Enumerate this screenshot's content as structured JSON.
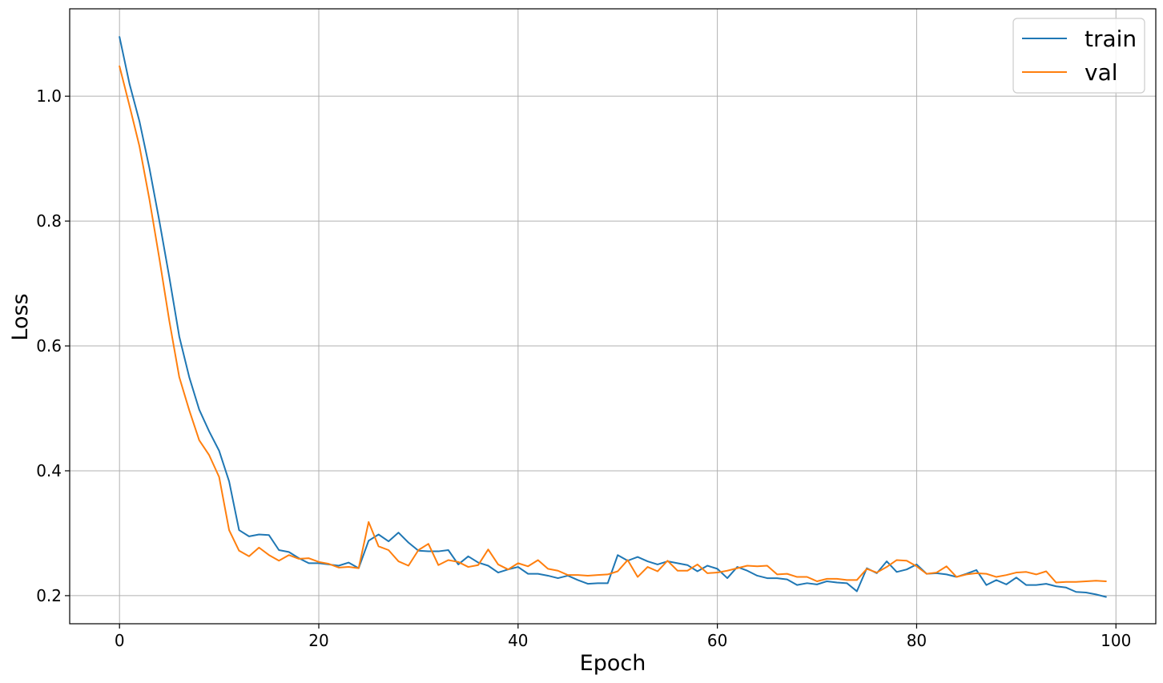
{
  "chart_data": {
    "type": "line",
    "title": "",
    "xlabel": "Epoch",
    "ylabel": "Loss",
    "xlim": [
      -5,
      104
    ],
    "ylim": [
      0.155,
      1.14
    ],
    "xticks": [
      0,
      20,
      40,
      60,
      80,
      100
    ],
    "xtick_labels": [
      "0",
      "20",
      "40",
      "60",
      "80",
      "100"
    ],
    "yticks": [
      0.2,
      0.4,
      0.6,
      0.8,
      1.0
    ],
    "ytick_labels": [
      "0.2",
      "0.4",
      "0.6",
      "0.8",
      "1.0"
    ],
    "grid": true,
    "legend_position": "top-right",
    "series": [
      {
        "name": "train",
        "color": "#1f77b4",
        "values": [
          1.095,
          1.02,
          0.96,
          0.885,
          0.8,
          0.71,
          0.615,
          0.55,
          0.498,
          0.463,
          0.432,
          0.383,
          0.305,
          0.295,
          0.298,
          0.297,
          0.273,
          0.27,
          0.26,
          0.252,
          0.252,
          0.25,
          0.248,
          0.253,
          0.244,
          0.288,
          0.298,
          0.287,
          0.301,
          0.285,
          0.272,
          0.271,
          0.271,
          0.273,
          0.25,
          0.263,
          0.253,
          0.248,
          0.237,
          0.242,
          0.246,
          0.235,
          0.235,
          0.232,
          0.228,
          0.232,
          0.225,
          0.219,
          0.22,
          0.22,
          0.265,
          0.256,
          0.262,
          0.255,
          0.25,
          0.255,
          0.252,
          0.249,
          0.239,
          0.248,
          0.243,
          0.228,
          0.246,
          0.24,
          0.232,
          0.228,
          0.228,
          0.226,
          0.217,
          0.22,
          0.218,
          0.223,
          0.221,
          0.22,
          0.207,
          0.244,
          0.236,
          0.255,
          0.238,
          0.242,
          0.25,
          0.235,
          0.236,
          0.234,
          0.23,
          0.235,
          0.241,
          0.217,
          0.225,
          0.218,
          0.229,
          0.217,
          0.217,
          0.219,
          0.215,
          0.213,
          0.206,
          0.205,
          0.202,
          0.198
        ]
      },
      {
        "name": "val",
        "color": "#ff7f0e",
        "values": [
          1.048,
          0.985,
          0.92,
          0.835,
          0.74,
          0.64,
          0.55,
          0.497,
          0.449,
          0.425,
          0.39,
          0.305,
          0.272,
          0.263,
          0.277,
          0.265,
          0.256,
          0.265,
          0.259,
          0.26,
          0.254,
          0.251,
          0.245,
          0.246,
          0.244,
          0.318,
          0.279,
          0.273,
          0.255,
          0.248,
          0.273,
          0.283,
          0.249,
          0.257,
          0.254,
          0.246,
          0.249,
          0.274,
          0.25,
          0.242,
          0.252,
          0.247,
          0.257,
          0.243,
          0.24,
          0.233,
          0.233,
          0.232,
          0.233,
          0.234,
          0.239,
          0.257,
          0.23,
          0.246,
          0.239,
          0.256,
          0.24,
          0.24,
          0.25,
          0.236,
          0.237,
          0.24,
          0.244,
          0.248,
          0.247,
          0.248,
          0.234,
          0.235,
          0.23,
          0.23,
          0.223,
          0.227,
          0.227,
          0.225,
          0.225,
          0.243,
          0.237,
          0.246,
          0.257,
          0.256,
          0.247,
          0.235,
          0.237,
          0.247,
          0.23,
          0.234,
          0.236,
          0.235,
          0.23,
          0.233,
          0.237,
          0.238,
          0.234,
          0.239,
          0.221,
          0.222,
          0.222,
          0.223,
          0.224,
          0.223
        ]
      }
    ]
  }
}
